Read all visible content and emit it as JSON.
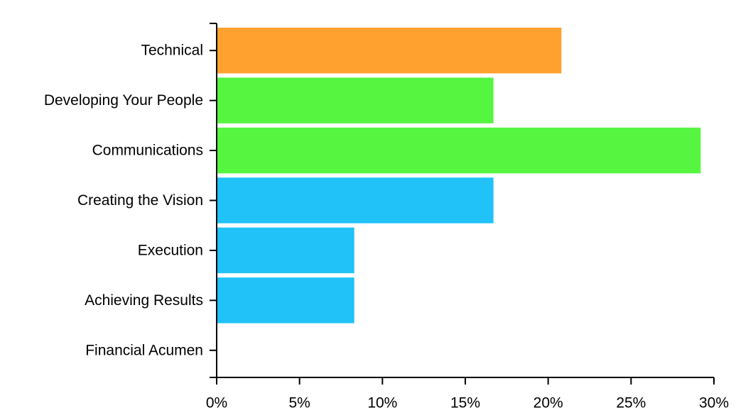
{
  "chart_data": {
    "type": "bar",
    "orientation": "horizontal",
    "categories": [
      "Technical",
      "Developing Your People",
      "Communications",
      "Creating the Vision",
      "Execution",
      "Achieving Results",
      "Financial Acumen"
    ],
    "values": [
      20.8,
      16.7,
      29.2,
      16.7,
      8.3,
      8.3,
      0
    ],
    "colors": [
      "#ffa12e",
      "#55f540",
      "#55f540",
      "#20c2f7",
      "#20c2f7",
      "#20c2f7",
      "#20c2f7"
    ],
    "title": "",
    "xlabel": "",
    "ylabel": "",
    "xlim": [
      0,
      30
    ],
    "xticks": [
      0,
      5,
      10,
      15,
      20,
      25,
      30
    ],
    "xtick_labels": [
      "0%",
      "5%",
      "10%",
      "15%",
      "20%",
      "25%",
      "30%"
    ],
    "grid": false,
    "legend": "none"
  }
}
